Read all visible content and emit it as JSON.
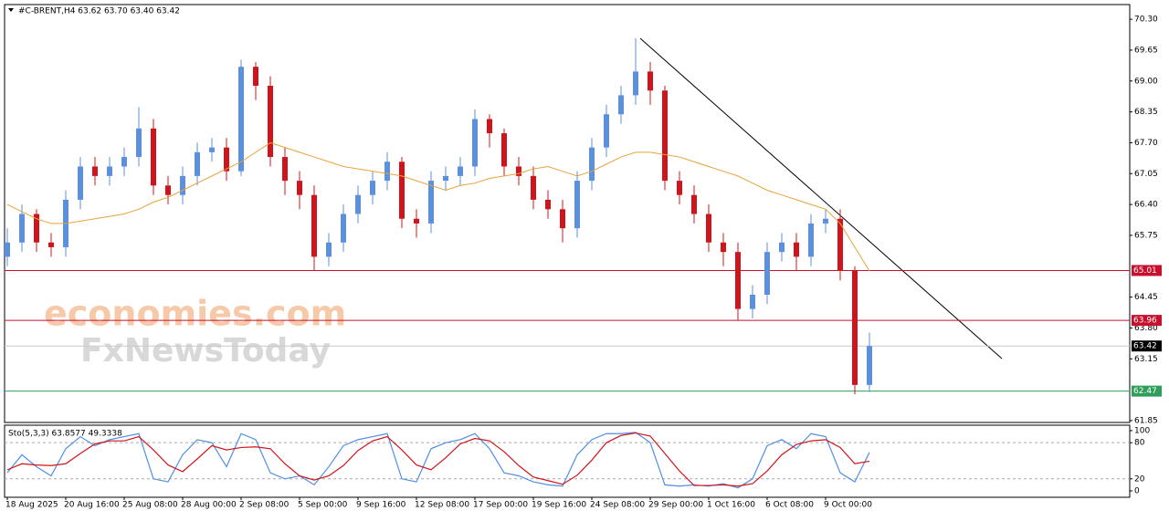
{
  "chart_data": {
    "type": "candlestick",
    "title": "#C-BRENT,H4  63.62 63.70 63.40 63.42",
    "watermarks": [
      "economies.com",
      "FxNewsToday"
    ],
    "categories": [
      "18 Aug 2025",
      null,
      null,
      null,
      "20 Aug 16:00",
      null,
      null,
      null,
      "25 Aug 08:00",
      null,
      null,
      null,
      "28 Aug 00:00",
      null,
      null,
      null,
      "2 Sep 08:00",
      null,
      null,
      null,
      "5 Sep 00:00",
      null,
      null,
      null,
      "9 Sep 16:00",
      null,
      null,
      null,
      "12 Sep 08:00",
      null,
      null,
      null,
      "17 Sep 00:00",
      null,
      null,
      null,
      "19 Sep 16:00",
      null,
      null,
      null,
      "24 Sep 08:00",
      null,
      null,
      null,
      "29 Sep 00:00",
      null,
      null,
      null,
      "1 Oct 16:00",
      null,
      null,
      null,
      "6 Oct 08:00",
      null,
      null,
      null,
      "9 Oct 00:00",
      null,
      null,
      null
    ],
    "open": [
      65.3,
      65.6,
      66.2,
      65.6,
      65.5,
      66.5,
      67.2,
      67.0,
      67.2,
      67.4,
      68.0,
      66.8,
      66.6,
      67.0,
      67.5,
      67.6,
      67.1,
      69.3,
      68.9,
      67.4,
      66.9,
      66.6,
      65.3,
      65.6,
      66.2,
      66.6,
      66.9,
      67.3,
      66.1,
      66.0,
      66.9,
      67.0,
      67.2,
      68.2,
      67.9,
      67.2,
      67.0,
      66.5,
      66.3,
      65.9,
      66.9,
      67.6,
      68.3,
      68.7,
      69.2,
      68.8,
      66.9,
      66.6,
      66.2,
      65.6,
      65.4,
      64.2,
      64.5,
      65.4,
      65.6,
      65.3,
      66.0,
      66.1,
      65.0,
      62.6
    ],
    "high": [
      65.9,
      66.4,
      66.3,
      65.8,
      66.7,
      67.4,
      67.4,
      67.4,
      67.6,
      68.45,
      68.2,
      67.0,
      67.2,
      67.7,
      67.8,
      67.8,
      69.45,
      69.4,
      69.1,
      67.6,
      67.1,
      66.8,
      65.8,
      66.4,
      66.8,
      67.1,
      67.5,
      67.4,
      66.3,
      67.1,
      67.2,
      67.4,
      68.4,
      68.3,
      68.0,
      67.4,
      67.2,
      66.7,
      66.5,
      67.1,
      67.8,
      68.5,
      68.9,
      69.9,
      69.4,
      68.9,
      67.1,
      66.8,
      66.4,
      65.8,
      65.6,
      64.7,
      65.6,
      65.8,
      65.8,
      66.2,
      66.3,
      66.3,
      65.1,
      63.7
    ],
    "low": [
      65.1,
      65.4,
      65.4,
      65.3,
      65.3,
      66.3,
      66.8,
      66.8,
      67.0,
      67.2,
      66.6,
      66.4,
      66.4,
      66.8,
      67.3,
      66.9,
      67.0,
      68.6,
      67.2,
      66.6,
      66.3,
      65.0,
      65.1,
      65.4,
      66.0,
      66.4,
      66.7,
      65.9,
      65.7,
      65.8,
      66.7,
      66.8,
      67.0,
      67.6,
      67.0,
      66.8,
      66.3,
      66.1,
      65.6,
      65.7,
      66.7,
      67.4,
      68.1,
      68.5,
      68.5,
      66.7,
      66.4,
      66.0,
      65.4,
      65.1,
      63.95,
      64.0,
      64.3,
      65.2,
      65.0,
      65.1,
      65.8,
      64.8,
      62.4,
      62.45
    ],
    "close": [
      65.6,
      66.2,
      65.6,
      65.5,
      66.5,
      67.2,
      67.0,
      67.2,
      67.4,
      68.0,
      66.8,
      66.6,
      67.0,
      67.5,
      67.6,
      67.1,
      69.3,
      68.9,
      67.4,
      66.9,
      66.6,
      65.3,
      65.6,
      66.2,
      66.6,
      66.9,
      67.3,
      66.1,
      66.0,
      66.9,
      67.0,
      67.2,
      68.2,
      67.9,
      67.2,
      67.0,
      66.5,
      66.3,
      65.9,
      66.9,
      67.6,
      68.3,
      68.7,
      69.2,
      68.8,
      66.9,
      66.6,
      66.2,
      65.6,
      65.4,
      64.2,
      64.5,
      65.4,
      65.6,
      65.3,
      66.0,
      66.1,
      65.0,
      62.6,
      63.42
    ],
    "up_color": "#5b8fe0",
    "down_color": "#d0141c",
    "moving_average": {
      "color": "#e8a33a",
      "values": [
        66.4,
        66.25,
        66.1,
        66.0,
        66.0,
        66.05,
        66.1,
        66.15,
        66.2,
        66.3,
        66.45,
        66.55,
        66.7,
        66.85,
        67.0,
        67.15,
        67.3,
        67.5,
        67.7,
        67.6,
        67.5,
        67.4,
        67.3,
        67.2,
        67.15,
        67.1,
        67.05,
        67.0,
        66.9,
        66.8,
        66.7,
        66.8,
        66.85,
        66.95,
        67.0,
        67.05,
        67.15,
        67.2,
        67.1,
        67.0,
        67.1,
        67.25,
        67.4,
        67.5,
        67.5,
        67.45,
        67.4,
        67.3,
        67.2,
        67.1,
        67.0,
        66.85,
        66.7,
        66.6,
        66.5,
        66.4,
        66.3,
        66.0,
        65.5,
        65.0
      ]
    },
    "levels": [
      {
        "value": 65.01,
        "color": "#c8102e"
      },
      {
        "value": 63.96,
        "color": "#c8102e"
      },
      {
        "value": 63.42,
        "color": "#000000",
        "line_color": "#c8c8c8"
      },
      {
        "value": 62.47,
        "color": "#2e9e5a"
      }
    ],
    "ylim": [
      61.81,
      70.61
    ],
    "yticks": [
      {
        "value": 70.3,
        "label": "70.30"
      },
      69.65,
      {
        "value": 69.0,
        "label": "69.00"
      },
      68.35,
      {
        "value": 67.7,
        "label": "67.70"
      },
      67.05,
      {
        "value": 66.4,
        "label": "66.40"
      },
      65.75,
      64.45,
      {
        "value": 63.8,
        "label": "63.80"
      },
      63.15,
      61.85
    ],
    "oscillator": {
      "title": "Sto(5,3,3) 63.8577 49.3338",
      "ylim": [
        -10.6,
        109
      ],
      "yticks": [
        100,
        80,
        20,
        0
      ],
      "levels": [
        80,
        20
      ],
      "series": [
        {
          "name": "%K",
          "color": "#4f8fe6",
          "values": [
            30,
            60,
            40,
            25,
            70,
            90,
            75,
            85,
            90,
            95,
            20,
            15,
            60,
            85,
            80,
            40,
            95,
            85,
            30,
            20,
            25,
            10,
            40,
            75,
            85,
            90,
            95,
            20,
            15,
            70,
            80,
            85,
            95,
            70,
            30,
            25,
            15,
            10,
            8,
            60,
            85,
            95,
            95,
            97,
            80,
            10,
            8,
            10,
            8,
            12,
            5,
            20,
            75,
            85,
            70,
            95,
            90,
            30,
            15,
            63.86
          ]
        },
        {
          "name": "%D",
          "color": "#d0141c",
          "values": [
            35,
            45,
            43,
            42,
            45,
            62,
            78,
            83,
            83,
            90,
            68,
            43,
            32,
            53,
            75,
            68,
            72,
            73,
            70,
            45,
            25,
            18,
            25,
            42,
            67,
            83,
            90,
            68,
            43,
            35,
            55,
            78,
            87,
            83,
            65,
            42,
            23,
            17,
            11,
            26,
            51,
            80,
            92,
            96,
            91,
            62,
            33,
            9,
            9,
            10,
            8,
            12,
            33,
            60,
            77,
            83,
            85,
            72,
            45,
            49.33
          ]
        }
      ]
    }
  }
}
